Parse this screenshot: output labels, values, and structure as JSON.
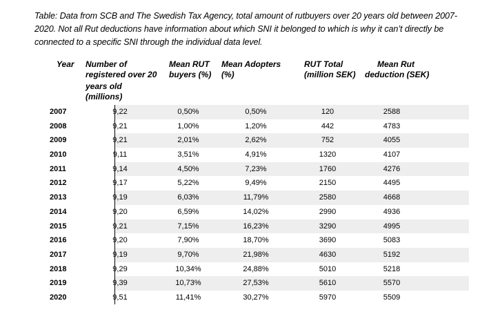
{
  "caption": "Table: Data from SCB and The Swedish Tax Agency, total amount of rutbuyers over 20 years old between 2007-2020. Not all Rut deductions have information about which SNI it belonged to which is why it can’t directly be connected to a specific SNI through the individual data level.",
  "headers": {
    "year": "Year",
    "registered_line1": "Number of",
    "registered_line2": "registered over 20",
    "registered_line3": "years old",
    "registered_line4": "(millions)",
    "rut_line1": "Mean RUT",
    "rut_line2": "buyers (%)",
    "adopters_line1": "Mean Adopters",
    "adopters_line2": "(%)",
    "total_line1": "RUT Total",
    "total_line2": "(million SEK)",
    "deduction_line1": "Mean Rut",
    "deduction_line2": "deduction (SEK)"
  },
  "rows": [
    {
      "year": "2007",
      "registered": "9,22",
      "rut_buyers": "0,50%",
      "adopters": "0,50%",
      "total": "120",
      "deduction": "2588"
    },
    {
      "year": "2008",
      "registered": "9,21",
      "rut_buyers": "1,00%",
      "adopters": "1,20%",
      "total": "442",
      "deduction": "4783"
    },
    {
      "year": "2009",
      "registered": "9,21",
      "rut_buyers": "2,01%",
      "adopters": "2,62%",
      "total": "752",
      "deduction": "4055"
    },
    {
      "year": "2010",
      "registered": "9,11",
      "rut_buyers": "3,51%",
      "adopters": "4,91%",
      "total": "1320",
      "deduction": "4107"
    },
    {
      "year": "2011",
      "registered": "9,14",
      "rut_buyers": "4,50%",
      "adopters": "7,23%",
      "total": "1760",
      "deduction": "4276"
    },
    {
      "year": "2012",
      "registered": "9,17",
      "rut_buyers": "5,22%",
      "adopters": "9,49%",
      "total": "2150",
      "deduction": "4495"
    },
    {
      "year": "2013",
      "registered": "9,19",
      "rut_buyers": "6,03%",
      "adopters": "11,79%",
      "total": "2580",
      "deduction": "4668"
    },
    {
      "year": "2014",
      "registered": "9,20",
      "rut_buyers": "6,59%",
      "adopters": "14,02%",
      "total": "2990",
      "deduction": "4936"
    },
    {
      "year": "2015",
      "registered": "9,21",
      "rut_buyers": "7,15%",
      "adopters": "16,23%",
      "total": "3290",
      "deduction": "4995"
    },
    {
      "year": "2016",
      "registered": "9,20",
      "rut_buyers": "7,90%",
      "adopters": "18,70%",
      "total": "3690",
      "deduction": "5083"
    },
    {
      "year": "2017",
      "registered": "9,19",
      "rut_buyers": "9,70%",
      "adopters": "21,98%",
      "total": "4630",
      "deduction": "5192"
    },
    {
      "year": "2018",
      "registered": "9,29",
      "rut_buyers": "10,34%",
      "adopters": "24,88%",
      "total": "5010",
      "deduction": "5218"
    },
    {
      "year": "2019",
      "registered": "9,39",
      "rut_buyers": "10,73%",
      "adopters": "27,53%",
      "total": "5610",
      "deduction": "5570"
    },
    {
      "year": "2020",
      "registered": "9,51",
      "rut_buyers": "11,41%",
      "adopters": "30,27%",
      "total": "5970",
      "deduction": "5509"
    }
  ]
}
